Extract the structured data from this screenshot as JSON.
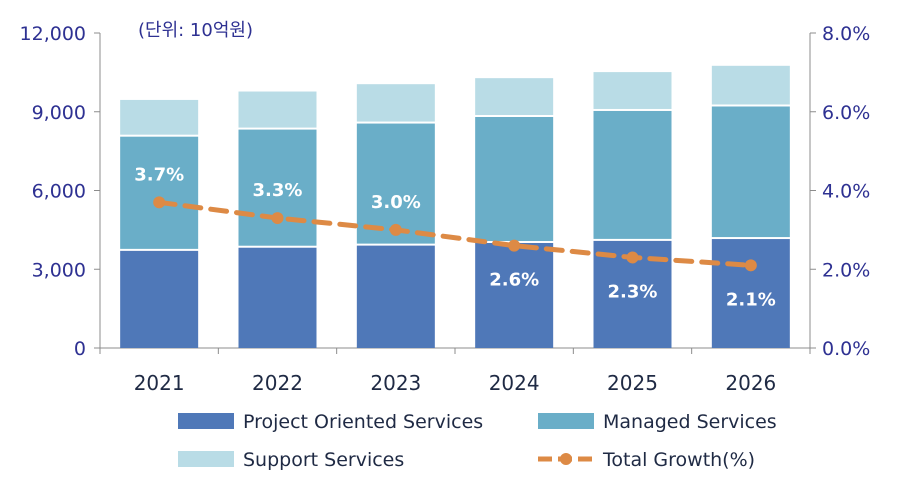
{
  "chart_data": {
    "type": "bar",
    "stacked": true,
    "unit_label": "(단위: 10억원)",
    "categories": [
      "2021",
      "2022",
      "2023",
      "2024",
      "2025",
      "2026"
    ],
    "series": [
      {
        "name": "Project Oriented Services",
        "color": "#4f78b8",
        "values": [
          3700,
          3820,
          3900,
          4000,
          4080,
          4150
        ]
      },
      {
        "name": "Managed Services",
        "color": "#6aaec8",
        "values": [
          4350,
          4500,
          4650,
          4800,
          4950,
          5050
        ]
      },
      {
        "name": "Support Services",
        "color": "#b9dce6",
        "values": [
          1400,
          1450,
          1500,
          1480,
          1480,
          1550
        ]
      }
    ],
    "growth": {
      "name": "Total Growth(%)",
      "color": "#dd8a45",
      "values": [
        3.7,
        3.3,
        3.0,
        2.6,
        2.3,
        2.1
      ],
      "labels": [
        "3.7%",
        "3.3%",
        "3.0%",
        "2.6%",
        "2.3%",
        "2.1%"
      ]
    },
    "y_left": {
      "min": 0,
      "max": 12000,
      "ticks": [
        0,
        3000,
        6000,
        9000,
        12000
      ],
      "tick_labels": [
        "0",
        "3,000",
        "6,000",
        "9,000",
        "12,000"
      ]
    },
    "y_right": {
      "min": 0,
      "max": 8,
      "ticks": [
        0,
        2,
        4,
        6,
        8
      ],
      "tick_labels": [
        "0.0%",
        "2.0%",
        "4.0%",
        "6.0%",
        "8.0%"
      ]
    },
    "legend": [
      "Project Oriented Services",
      "Managed Services",
      "Support Services",
      "Total Growth(%)"
    ],
    "legend_position": "bottom"
  }
}
